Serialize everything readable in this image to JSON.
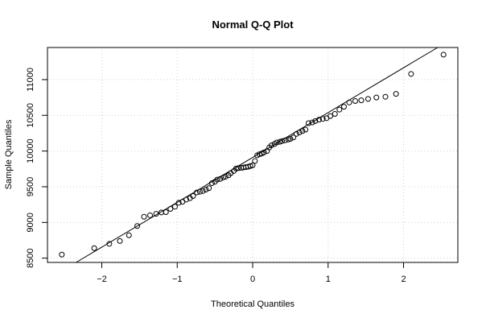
{
  "chart_data": {
    "type": "scatter",
    "title": "Normal Q-Q Plot",
    "xlabel": "Theoretical Quantiles",
    "ylabel": "Sample Quantiles",
    "xlim": [
      -2.72,
      2.72
    ],
    "ylim": [
      8440,
      11450
    ],
    "x_ticks": [
      -2,
      -1,
      0,
      1,
      2
    ],
    "x_tick_labels": [
      "−2",
      "−1",
      "0",
      "1",
      "2"
    ],
    "y_ticks": [
      8500,
      9000,
      9500,
      10000,
      10500,
      11000
    ],
    "y_tick_labels": [
      "8500",
      "9000",
      "9500",
      "10000",
      "10500",
      "11000"
    ],
    "grid": true,
    "marker": "open-circle",
    "reference_line": {
      "x": [
        -2.5,
        2.5
      ],
      "y": [
        8340,
        11480
      ]
    },
    "points": [
      [
        -2.53,
        8550
      ],
      [
        -2.1,
        8640
      ],
      [
        -1.9,
        8700
      ],
      [
        -1.76,
        8740
      ],
      [
        -1.64,
        8820
      ],
      [
        -1.53,
        8950
      ],
      [
        -1.44,
        9080
      ],
      [
        -1.36,
        9100
      ],
      [
        -1.28,
        9120
      ],
      [
        -1.21,
        9140
      ],
      [
        -1.15,
        9145
      ],
      [
        -1.09,
        9190
      ],
      [
        -1.03,
        9220
      ],
      [
        -0.98,
        9275
      ],
      [
        -0.93,
        9290
      ],
      [
        -0.88,
        9320
      ],
      [
        -0.83,
        9340
      ],
      [
        -0.79,
        9370
      ],
      [
        -0.74,
        9420
      ],
      [
        -0.7,
        9430
      ],
      [
        -0.66,
        9440
      ],
      [
        -0.62,
        9460
      ],
      [
        -0.58,
        9480
      ],
      [
        -0.54,
        9550
      ],
      [
        -0.5,
        9570
      ],
      [
        -0.47,
        9600
      ],
      [
        -0.43,
        9610
      ],
      [
        -0.39,
        9630
      ],
      [
        -0.36,
        9640
      ],
      [
        -0.32,
        9660
      ],
      [
        -0.29,
        9690
      ],
      [
        -0.25,
        9720
      ],
      [
        -0.22,
        9755
      ],
      [
        -0.19,
        9760
      ],
      [
        -0.15,
        9765
      ],
      [
        -0.12,
        9770
      ],
      [
        -0.09,
        9775
      ],
      [
        -0.06,
        9780
      ],
      [
        -0.03,
        9790
      ],
      [
        0.0,
        9800
      ],
      [
        0.03,
        9860
      ],
      [
        0.06,
        9940
      ],
      [
        0.09,
        9955
      ],
      [
        0.12,
        9965
      ],
      [
        0.15,
        9980
      ],
      [
        0.19,
        10000
      ],
      [
        0.22,
        10050
      ],
      [
        0.25,
        10080
      ],
      [
        0.29,
        10100
      ],
      [
        0.32,
        10120
      ],
      [
        0.36,
        10130
      ],
      [
        0.39,
        10140
      ],
      [
        0.43,
        10150
      ],
      [
        0.47,
        10160
      ],
      [
        0.5,
        10170
      ],
      [
        0.54,
        10190
      ],
      [
        0.58,
        10240
      ],
      [
        0.62,
        10260
      ],
      [
        0.66,
        10280
      ],
      [
        0.7,
        10300
      ],
      [
        0.74,
        10390
      ],
      [
        0.79,
        10400
      ],
      [
        0.83,
        10420
      ],
      [
        0.88,
        10440
      ],
      [
        0.93,
        10450
      ],
      [
        0.98,
        10460
      ],
      [
        1.03,
        10490
      ],
      [
        1.09,
        10520
      ],
      [
        1.15,
        10580
      ],
      [
        1.21,
        10620
      ],
      [
        1.28,
        10680
      ],
      [
        1.36,
        10700
      ],
      [
        1.44,
        10710
      ],
      [
        1.53,
        10730
      ],
      [
        1.64,
        10750
      ],
      [
        1.76,
        10760
      ],
      [
        1.9,
        10800
      ],
      [
        2.1,
        11080
      ],
      [
        2.53,
        11350
      ]
    ]
  }
}
